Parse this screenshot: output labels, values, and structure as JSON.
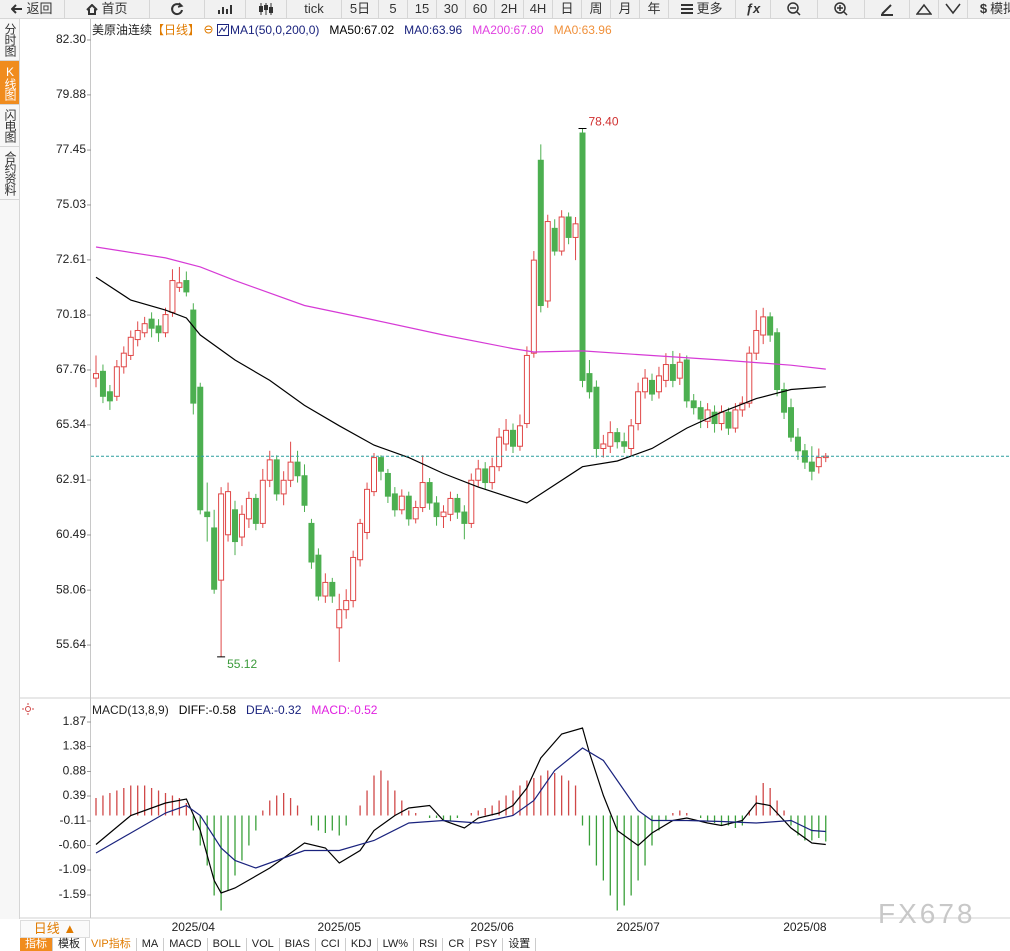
{
  "toolbar": [
    "返回",
    "首页",
    "tick",
    "5日",
    "5",
    "15",
    "30",
    "60",
    "2H",
    "4H",
    "日",
    "周",
    "月",
    "年",
    "更多",
    "ƒx",
    "模拟"
  ],
  "sidebar": [
    "分时图",
    "K线图",
    "闪电图",
    "合约资料"
  ],
  "chart_data": [
    {
      "type": "candlestick",
      "header": {
        "instrument": "美原油连续",
        "period": "【日线】",
        "indicator": "MA1(50,0,200,0)",
        "items": [
          {
            "text": "MA50:67.02",
            "color": "#000000"
          },
          {
            "text": "MA0:63.96",
            "color": "#1a237e"
          },
          {
            "text": "MA200:67.80",
            "color": "#e040e0"
          },
          {
            "text": "MA0:63.96",
            "color": "#f0903a"
          }
        ]
      },
      "categories": [
        null,
        null,
        null,
        null,
        null,
        null,
        null,
        null,
        null,
        null,
        null,
        null,
        null,
        null,
        "2025/04",
        null,
        null,
        null,
        null,
        null,
        null,
        null,
        null,
        null,
        null,
        null,
        null,
        null,
        null,
        null,
        null,
        null,
        null,
        null,
        null,
        "2025/05",
        null,
        null,
        null,
        null,
        null,
        null,
        null,
        null,
        null,
        null,
        null,
        null,
        null,
        null,
        null,
        null,
        null,
        null,
        null,
        null,
        null,
        "2025/06",
        null,
        null,
        null,
        null,
        null,
        null,
        null,
        null,
        null,
        null,
        null,
        null,
        null,
        null,
        null,
        null,
        null,
        null,
        null,
        null,
        "2025/07",
        null,
        null,
        null,
        null,
        null,
        null,
        null,
        null,
        null,
        null,
        null,
        null,
        null,
        null,
        null,
        null,
        null,
        null,
        null,
        null,
        null,
        null,
        null,
        "2025/08",
        null,
        null,
        null
      ],
      "ohlc": [
        [
          67.4,
          68.4,
          67.0,
          67.6
        ],
        [
          67.7,
          68.0,
          66.3,
          66.6
        ],
        [
          66.8,
          67.1,
          66.0,
          66.4
        ],
        [
          66.6,
          68.2,
          66.4,
          67.9
        ],
        [
          67.9,
          68.8,
          67.6,
          68.5
        ],
        [
          68.4,
          69.5,
          68.2,
          69.2
        ],
        [
          69.1,
          69.9,
          68.8,
          69.5
        ],
        [
          69.4,
          70.1,
          69.2,
          69.8
        ],
        [
          70.0,
          70.3,
          69.2,
          69.6
        ],
        [
          69.7,
          70.0,
          69.0,
          69.4
        ],
        [
          69.4,
          70.5,
          69.2,
          70.2
        ],
        [
          70.3,
          72.2,
          70.1,
          71.7
        ],
        [
          71.4,
          72.3,
          71.2,
          71.6
        ],
        [
          71.7,
          72.1,
          71.0,
          71.2
        ],
        [
          70.4,
          70.7,
          65.8,
          66.3
        ],
        [
          67.0,
          67.2,
          61.4,
          61.6
        ],
        [
          61.5,
          62.8,
          60.2,
          61.3
        ],
        [
          60.8,
          61.6,
          57.9,
          58.1
        ],
        [
          58.5,
          62.6,
          55.12,
          62.3
        ],
        [
          60.5,
          62.8,
          60.2,
          62.4
        ],
        [
          61.6,
          62.0,
          59.6,
          60.2
        ],
        [
          60.4,
          61.8,
          60.0,
          61.4
        ],
        [
          61.2,
          62.4,
          60.8,
          62.1
        ],
        [
          62.1,
          62.3,
          60.7,
          61.0
        ],
        [
          61.0,
          63.4,
          60.8,
          62.9
        ],
        [
          62.9,
          64.2,
          62.6,
          63.8
        ],
        [
          63.8,
          64.0,
          62.0,
          62.3
        ],
        [
          62.3,
          63.3,
          61.8,
          62.9
        ],
        [
          62.9,
          64.6,
          62.6,
          63.7
        ],
        [
          63.7,
          64.2,
          62.8,
          63.1
        ],
        [
          63.1,
          63.6,
          61.5,
          61.8
        ],
        [
          61.0,
          61.2,
          59.0,
          59.3
        ],
        [
          59.6,
          59.9,
          57.6,
          57.8
        ],
        [
          57.8,
          58.8,
          57.5,
          58.4
        ],
        [
          58.4,
          58.6,
          57.5,
          57.8
        ],
        [
          56.4,
          57.9,
          54.9,
          57.2
        ],
        [
          57.2,
          58.1,
          56.8,
          57.6
        ],
        [
          57.6,
          59.8,
          57.3,
          59.5
        ],
        [
          59.4,
          61.2,
          59.1,
          61.0
        ],
        [
          60.6,
          62.8,
          60.3,
          62.5
        ],
        [
          62.4,
          64.1,
          62.2,
          63.9
        ],
        [
          63.9,
          64.0,
          62.9,
          63.3
        ],
        [
          63.2,
          63.4,
          61.9,
          62.2
        ],
        [
          62.3,
          62.6,
          61.3,
          61.6
        ],
        [
          61.6,
          62.5,
          61.4,
          62.2
        ],
        [
          62.2,
          62.4,
          60.9,
          61.2
        ],
        [
          61.2,
          62.0,
          61.0,
          61.7
        ],
        [
          61.7,
          64.0,
          61.5,
          62.8
        ],
        [
          62.8,
          63.0,
          61.6,
          61.9
        ],
        [
          61.9,
          62.2,
          60.9,
          61.3
        ],
        [
          61.3,
          61.8,
          60.8,
          61.5
        ],
        [
          61.4,
          62.4,
          61.1,
          62.1
        ],
        [
          62.1,
          62.3,
          61.2,
          61.5
        ],
        [
          61.5,
          61.8,
          60.3,
          61.0
        ],
        [
          61.0,
          63.2,
          60.8,
          62.9
        ],
        [
          62.9,
          63.8,
          62.6,
          63.4
        ],
        [
          63.4,
          63.7,
          62.5,
          62.8
        ],
        [
          62.8,
          63.9,
          62.5,
          63.5
        ],
        [
          63.5,
          65.2,
          63.3,
          64.8
        ],
        [
          64.5,
          65.6,
          64.2,
          65.1
        ],
        [
          65.1,
          65.4,
          64.1,
          64.4
        ],
        [
          64.4,
          65.8,
          64.2,
          65.3
        ],
        [
          65.4,
          68.8,
          65.2,
          68.4
        ],
        [
          68.5,
          73.0,
          68.3,
          72.6
        ],
        [
          77.0,
          77.7,
          70.3,
          70.6
        ],
        [
          70.8,
          74.6,
          70.5,
          74.3
        ],
        [
          74.0,
          74.4,
          72.8,
          73.0
        ],
        [
          73.0,
          74.8,
          72.8,
          74.5
        ],
        [
          74.5,
          74.7,
          73.3,
          73.6
        ],
        [
          73.6,
          74.5,
          72.6,
          74.2
        ],
        [
          78.2,
          78.4,
          67.0,
          67.3
        ],
        [
          67.6,
          68.2,
          66.5,
          66.8
        ],
        [
          67.0,
          67.3,
          63.9,
          64.3
        ],
        [
          64.3,
          64.9,
          63.9,
          64.5
        ],
        [
          64.4,
          65.5,
          64.1,
          65.0
        ],
        [
          65.0,
          65.2,
          64.3,
          64.6
        ],
        [
          64.6,
          65.0,
          64.1,
          64.4
        ],
        [
          64.3,
          65.6,
          64.0,
          65.3
        ],
        [
          65.4,
          67.2,
          65.1,
          66.8
        ],
        [
          66.8,
          67.8,
          66.5,
          67.4
        ],
        [
          67.3,
          67.6,
          66.4,
          66.7
        ],
        [
          66.8,
          67.9,
          66.5,
          67.5
        ],
        [
          67.3,
          68.5,
          67.0,
          68.0
        ],
        [
          68.0,
          68.6,
          67.0,
          67.3
        ],
        [
          67.4,
          68.5,
          67.1,
          68.1
        ],
        [
          68.2,
          68.4,
          66.1,
          66.4
        ],
        [
          66.4,
          66.7,
          65.8,
          66.1
        ],
        [
          66.1,
          66.4,
          65.2,
          65.6
        ],
        [
          65.5,
          66.3,
          65.2,
          66.0
        ],
        [
          65.9,
          66.2,
          65.0,
          65.4
        ],
        [
          65.4,
          66.2,
          65.1,
          65.9
        ],
        [
          65.9,
          66.1,
          64.9,
          65.2
        ],
        [
          65.2,
          66.3,
          65.0,
          66.0
        ],
        [
          66.0,
          66.6,
          65.7,
          66.3
        ],
        [
          66.3,
          68.8,
          66.1,
          68.5
        ],
        [
          68.5,
          70.4,
          68.2,
          69.5
        ],
        [
          69.3,
          70.5,
          68.9,
          70.1
        ],
        [
          70.1,
          70.3,
          69.0,
          69.3
        ],
        [
          69.4,
          69.6,
          66.6,
          66.9
        ],
        [
          66.9,
          67.2,
          65.6,
          65.9
        ],
        [
          66.1,
          66.5,
          64.6,
          64.8
        ],
        [
          64.8,
          65.2,
          63.8,
          64.2
        ],
        [
          64.2,
          64.5,
          63.4,
          63.7
        ],
        [
          63.7,
          64.4,
          62.9,
          63.3
        ],
        [
          63.5,
          64.3,
          63.2,
          63.9
        ],
        [
          63.9,
          64.1,
          63.7,
          63.96
        ]
      ],
      "up_color": "#e04848",
      "down_color": "#4caf50",
      "series": [
        {
          "color": "#000000",
          "x": [
            0,
            5,
            10,
            13,
            15,
            20,
            25,
            30,
            35,
            40,
            45,
            50,
            55,
            60,
            62,
            65,
            70,
            75,
            80,
            85,
            90,
            95,
            100,
            105
          ],
          "values": [
            71.85,
            70.84,
            70.4,
            70.05,
            69.3,
            68.2,
            67.3,
            66.2,
            65.3,
            64.45,
            63.9,
            63.2,
            62.6,
            62.1,
            61.9,
            62.5,
            63.5,
            63.75,
            64.3,
            65.2,
            65.9,
            66.5,
            66.9,
            67.02
          ]
        },
        {
          "color": "#d63ad6",
          "x": [
            0,
            10,
            15,
            20,
            30,
            40,
            50,
            60,
            63,
            70,
            80,
            90,
            100,
            105
          ],
          "values": [
            73.18,
            72.7,
            72.3,
            71.7,
            70.6,
            69.96,
            69.3,
            68.7,
            68.55,
            68.6,
            68.4,
            68.2,
            67.97,
            67.8
          ]
        }
      ],
      "last_price": 63.96,
      "last_price_color": "#2a9d9d",
      "annotations": [
        {
          "label": "78.40",
          "value": 78.4,
          "at": 70,
          "color": "#d03030"
        },
        {
          "label": "55.12",
          "value": 55.12,
          "at": 18,
          "color": "#3a9a3a"
        }
      ],
      "ylim": [
        53.66,
        83.18
      ],
      "yticks": [
        {
          "value": 82.3,
          "label": "82.30"
        },
        79.88,
        77.45,
        75.03,
        72.61,
        70.18,
        67.76,
        65.34,
        62.91,
        60.49,
        58.06,
        55.64
      ]
    },
    {
      "type": "macd",
      "header": {
        "indicator": "MACD(13,8,9)",
        "items": [
          {
            "text": "DIFF:-0.58",
            "color": "#000000"
          },
          {
            "text": "DEA:-0.32",
            "color": "#1a237e"
          },
          {
            "text": "MACD:-0.52",
            "color": "#e020e0"
          }
        ]
      },
      "histogram": [
        0.35,
        0.4,
        0.45,
        0.5,
        0.55,
        0.6,
        0.6,
        0.6,
        0.55,
        0.5,
        0.45,
        0.4,
        0.35,
        0.25,
        -0.3,
        -0.6,
        -1.0,
        -1.6,
        -1.9,
        -1.5,
        -1.2,
        -0.9,
        -0.6,
        -0.3,
        0.1,
        0.3,
        0.4,
        0.45,
        0.35,
        0.2,
        0.0,
        -0.2,
        -0.3,
        -0.35,
        -0.3,
        -0.4,
        -0.2,
        0.0,
        0.2,
        0.5,
        0.8,
        0.9,
        0.7,
        0.5,
        0.3,
        0.1,
        0.05,
        0.0,
        -0.05,
        -0.05,
        -0.1,
        -0.1,
        -0.05,
        0.0,
        0.05,
        0.1,
        0.15,
        0.2,
        0.3,
        0.4,
        0.5,
        0.6,
        0.7,
        0.75,
        0.8,
        0.9,
        0.85,
        0.8,
        0.7,
        0.6,
        -0.2,
        -0.6,
        -1.0,
        -1.3,
        -1.6,
        -1.9,
        -1.8,
        -1.6,
        -1.3,
        -1.0,
        -0.6,
        -0.3,
        -0.1,
        0.05,
        0.1,
        0.05,
        0.0,
        -0.05,
        -0.1,
        -0.15,
        -0.2,
        -0.2,
        -0.25,
        -0.2,
        0.1,
        0.4,
        0.65,
        0.55,
        0.3,
        0.1,
        -0.2,
        -0.4,
        -0.5,
        -0.5,
        -0.45,
        -0.52
      ],
      "up_color": "#d04848",
      "down_color": "#3aa03a",
      "series": [
        {
          "color": "#000000",
          "x": [
            0,
            5,
            10,
            13,
            15,
            17,
            18,
            20,
            25,
            30,
            33,
            35,
            38,
            40,
            43,
            45,
            48,
            50,
            53,
            55,
            58,
            60,
            62,
            64,
            67,
            70,
            71,
            73,
            75,
            78,
            80,
            83,
            85,
            88,
            90,
            93,
            95,
            97,
            100,
            103,
            105
          ],
          "values": [
            -0.58,
            0.0,
            0.25,
            0.33,
            -0.3,
            -1.3,
            -1.55,
            -1.45,
            -1.05,
            -0.55,
            -0.65,
            -0.95,
            -0.7,
            -0.3,
            0.0,
            0.15,
            0.2,
            -0.1,
            -0.25,
            -0.05,
            0.05,
            0.2,
            0.55,
            1.15,
            1.63,
            1.75,
            1.25,
            0.4,
            -0.3,
            -0.6,
            -0.35,
            -0.1,
            -0.05,
            -0.15,
            -0.2,
            -0.1,
            0.25,
            0.2,
            -0.25,
            -0.55,
            -0.58
          ]
        },
        {
          "color": "#1a237e",
          "x": [
            0,
            5,
            10,
            13,
            15,
            18,
            20,
            23,
            27,
            30,
            35,
            40,
            45,
            50,
            55,
            60,
            63,
            66,
            70,
            73,
            75,
            78,
            80,
            85,
            90,
            95,
            100,
            103,
            105
          ],
          "values": [
            -0.75,
            -0.35,
            0.05,
            0.2,
            0.0,
            -0.65,
            -0.9,
            -1.05,
            -0.85,
            -0.7,
            -0.7,
            -0.5,
            -0.15,
            -0.1,
            -0.15,
            0.0,
            0.3,
            0.9,
            1.35,
            1.1,
            0.7,
            0.1,
            -0.1,
            -0.1,
            -0.12,
            -0.15,
            -0.1,
            -0.3,
            -0.32
          ]
        }
      ],
      "ylim": [
        -2.05,
        2.31
      ],
      "yticks": [
        1.87,
        1.38,
        0.88,
        0.39,
        -0.11,
        {
          "value": -0.6,
          "label": "-0.60"
        },
        -1.09,
        -1.59
      ]
    }
  ],
  "bottom_bar": {
    "period": "日线 ▲",
    "tabs": [
      "指标",
      "模板",
      "VIP指标",
      "MA",
      "MACD",
      "BOLL",
      "VOL",
      "BIAS",
      "CCI",
      "KDJ",
      "LW%",
      "RSI",
      "CR",
      "PSY",
      "设置"
    ]
  },
  "watermark": "FX678"
}
